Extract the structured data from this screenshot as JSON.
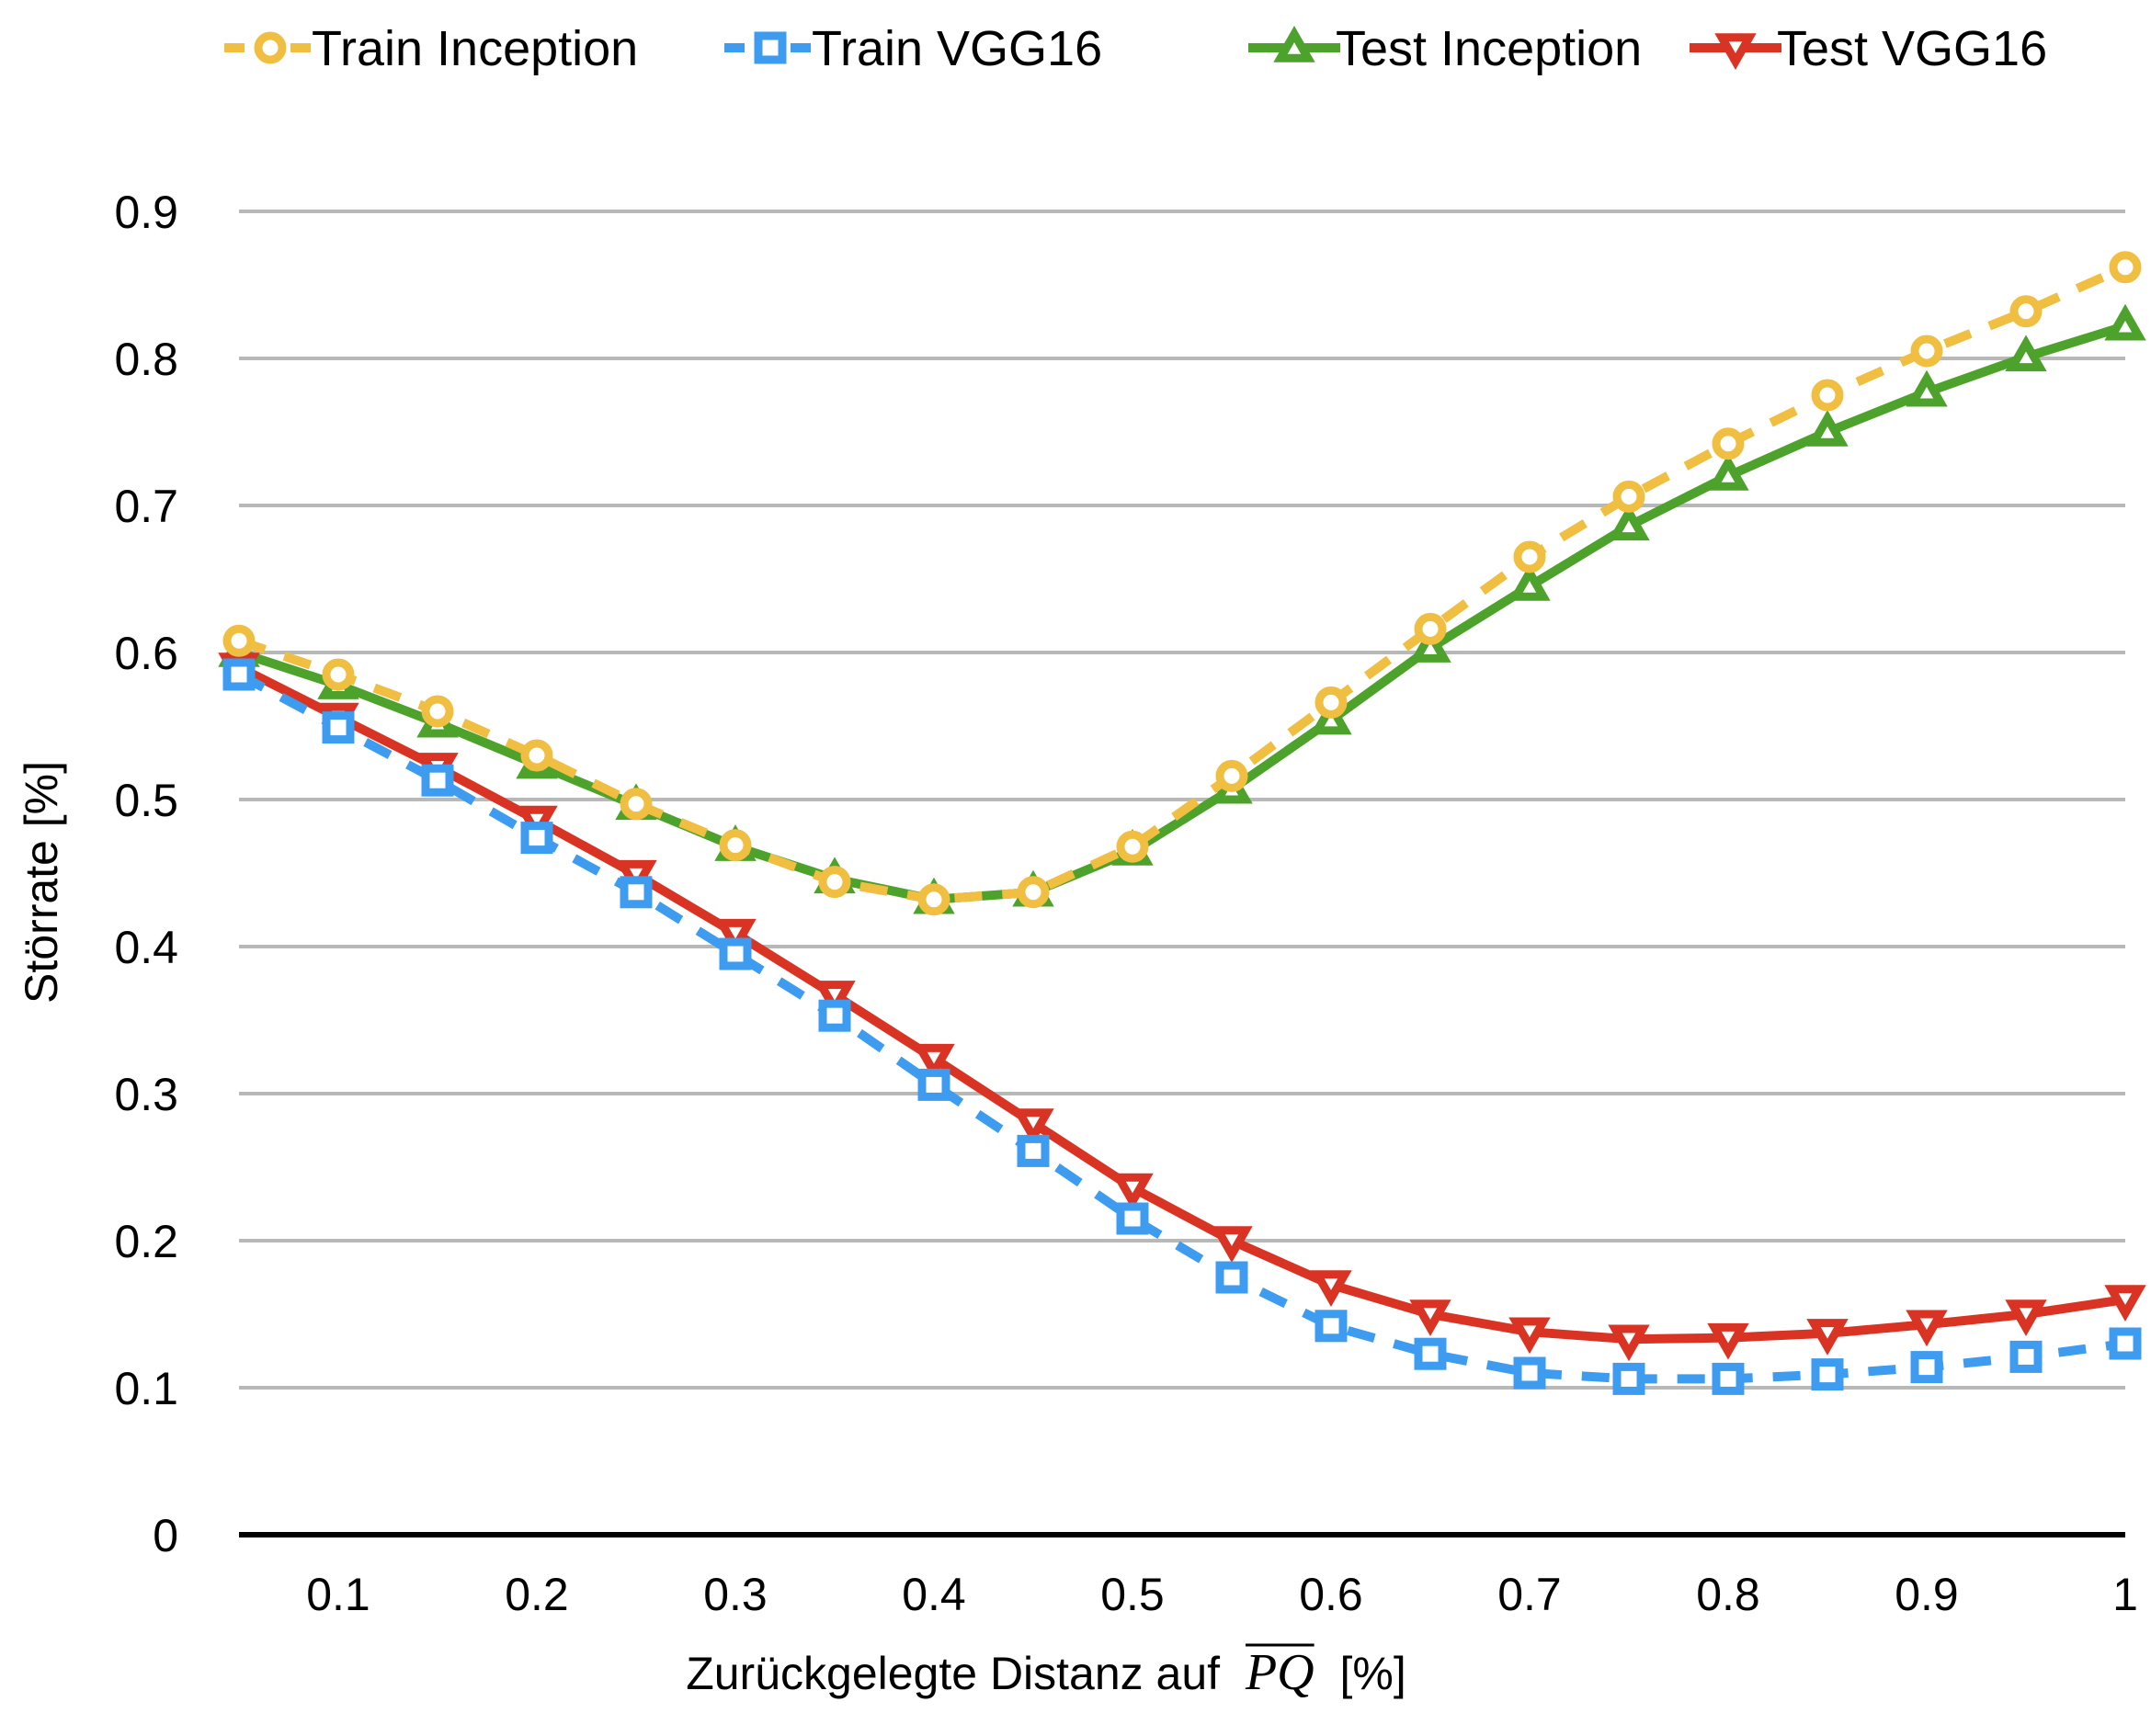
{
  "chart_data": {
    "type": "line",
    "x": [
      0.05,
      0.1,
      0.15,
      0.2,
      0.25,
      0.3,
      0.35,
      0.4,
      0.45,
      0.5,
      0.55,
      0.6,
      0.65,
      0.7,
      0.75,
      0.8,
      0.85,
      0.9,
      0.95,
      1.0
    ],
    "series": [
      {
        "name": "Train Inception",
        "color": "#F0BE41",
        "line_style": "dashed",
        "marker": "circle",
        "values": [
          0.608,
          0.585,
          0.56,
          0.53,
          0.497,
          0.469,
          0.444,
          0.432,
          0.437,
          0.468,
          0.516,
          0.566,
          0.616,
          0.665,
          0.706,
          0.742,
          0.775,
          0.805,
          0.832,
          0.862
        ]
      },
      {
        "name": "Train VGG16",
        "color": "#3D9BF0",
        "line_style": "dashed",
        "marker": "square",
        "values": [
          0.585,
          0.549,
          0.513,
          0.474,
          0.437,
          0.395,
          0.353,
          0.306,
          0.261,
          0.215,
          0.175,
          0.142,
          0.123,
          0.11,
          0.106,
          0.106,
          0.109,
          0.114,
          0.121,
          0.13
        ]
      },
      {
        "name": "Test Inception",
        "color": "#4DA22B",
        "line_style": "solid",
        "marker": "triangle-up",
        "values": [
          0.6,
          0.578,
          0.552,
          0.524,
          0.496,
          0.468,
          0.446,
          0.432,
          0.437,
          0.465,
          0.507,
          0.554,
          0.603,
          0.645,
          0.686,
          0.72,
          0.75,
          0.777,
          0.801,
          0.822
        ]
      },
      {
        "name": "Test VGG16",
        "color": "#D93324",
        "line_style": "solid",
        "marker": "triangle-down",
        "values": [
          0.59,
          0.556,
          0.522,
          0.486,
          0.449,
          0.409,
          0.367,
          0.324,
          0.28,
          0.236,
          0.2,
          0.17,
          0.15,
          0.138,
          0.133,
          0.134,
          0.137,
          0.143,
          0.15,
          0.16
        ]
      }
    ],
    "xlabel": "Zurückgelegte Distanz auf",
    "xlabel_symbol": "PQ",
    "xlabel_unit": "[%]",
    "ylabel": "Störrate [%]",
    "xlim": [
      0.05,
      1.0
    ],
    "ylim": [
      0,
      0.9
    ],
    "xticks": [
      0.1,
      0.2,
      0.3,
      0.4,
      0.5,
      0.6,
      0.7,
      0.8,
      0.9,
      1
    ],
    "xtick_labels": [
      "0.1",
      "0.2",
      "0.3",
      "0.4",
      "0.5",
      "0.6",
      "0.7",
      "0.8",
      "0.9",
      "1"
    ],
    "yticks": [
      0,
      0.1,
      0.2,
      0.3,
      0.4,
      0.5,
      0.6,
      0.7,
      0.8,
      0.9
    ],
    "ytick_labels": [
      "0",
      "0.1",
      "0.2",
      "0.3",
      "0.4",
      "0.5",
      "0.6",
      "0.7",
      "0.8",
      "0.9"
    ],
    "grid": "horizontal",
    "legend_position": "top"
  }
}
